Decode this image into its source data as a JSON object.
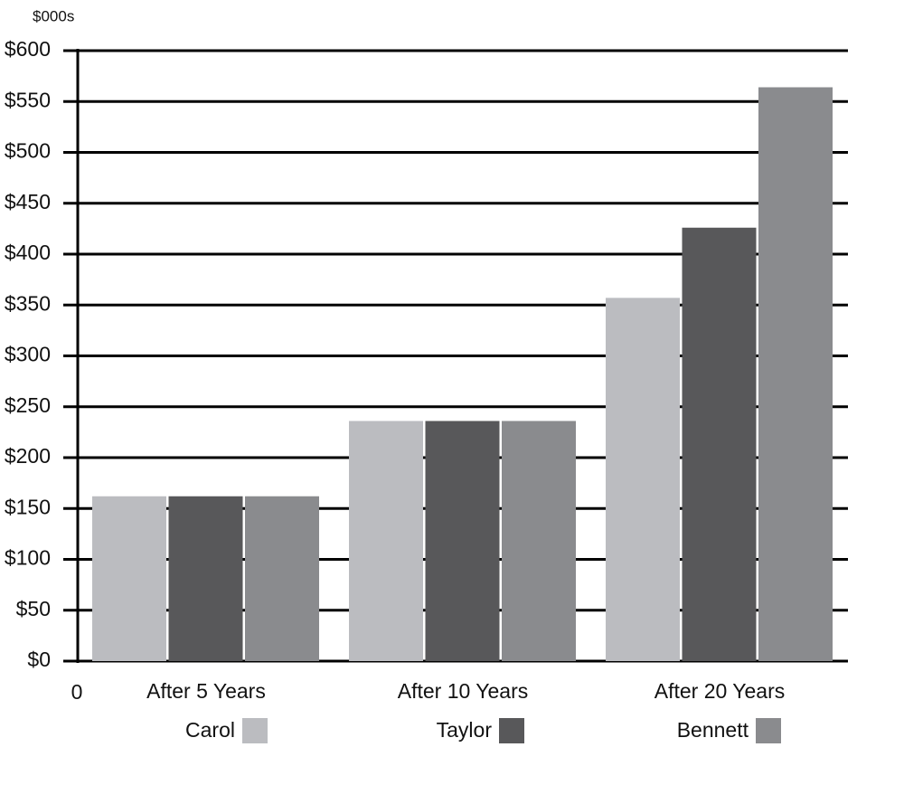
{
  "chart_data": {
    "type": "bar",
    "ylabel": "$000s",
    "x_origin_label": "0",
    "categories": [
      "After 5 Years",
      "After 10 Years",
      "After 20 Years"
    ],
    "series": [
      {
        "name": "Carol",
        "color": "#bbbcc0",
        "values": [
          162,
          236,
          357
        ]
      },
      {
        "name": "Taylor",
        "color": "#58585a",
        "values": [
          162,
          236,
          426
        ]
      },
      {
        "name": "Bennett",
        "color": "#8a8b8e",
        "values": [
          162,
          236,
          564
        ]
      }
    ],
    "ylim": [
      0,
      600
    ],
    "yticks": [
      {
        "value": 0,
        "label": "$0"
      },
      {
        "value": 50,
        "label": "$50"
      },
      {
        "value": 100,
        "label": "$100"
      },
      {
        "value": 150,
        "label": "$150"
      },
      {
        "value": 200,
        "label": "$200"
      },
      {
        "value": 250,
        "label": "$250"
      },
      {
        "value": 300,
        "label": "$300"
      },
      {
        "value": 350,
        "label": "$350"
      },
      {
        "value": 400,
        "label": "$400"
      },
      {
        "value": 450,
        "label": "$450"
      },
      {
        "value": 500,
        "label": "$500"
      },
      {
        "value": 550,
        "label": "$550"
      },
      {
        "value": 600,
        "label": "$600"
      }
    ],
    "grid": true
  }
}
